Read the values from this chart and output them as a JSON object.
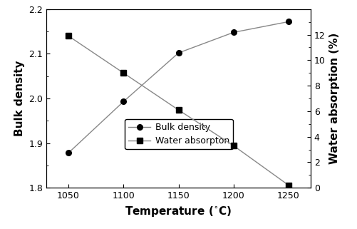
{
  "temperature": [
    1050,
    1100,
    1150,
    1200,
    1250
  ],
  "bulk_density": [
    1.878,
    1.993,
    2.102,
    2.148,
    2.172
  ],
  "water_absorption": [
    11.9,
    9.0,
    6.1,
    3.3,
    0.2
  ],
  "bd_ylim": [
    1.8,
    2.2
  ],
  "bd_yticks": [
    1.8,
    1.9,
    2.0,
    2.1,
    2.2
  ],
  "wa_ylim": [
    0,
    14
  ],
  "wa_yticks": [
    0,
    2,
    4,
    6,
    8,
    10,
    12
  ],
  "xlim": [
    1030,
    1270
  ],
  "xticks": [
    1050,
    1100,
    1150,
    1200,
    1250
  ],
  "xlabel": "Temperature (°C)",
  "xlabel_superscript": true,
  "ylabel_left": "Bulk density",
  "ylabel_right": "Water absorption (%)",
  "legend_bulk": "Bulk density",
  "legend_water": "Water absorpton",
  "line_color": "#888888",
  "marker_color": "#000000",
  "background_color": "#ffffff",
  "fontsize_label": 11,
  "fontsize_tick": 9,
  "fontsize_legend": 9
}
